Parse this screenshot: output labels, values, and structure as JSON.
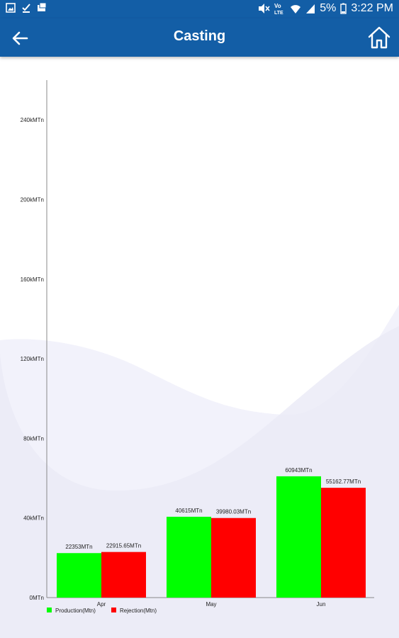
{
  "status_bar": {
    "battery": "5%",
    "time": "3:22 PM",
    "network_label": "Vo)\nLTE"
  },
  "app_bar": {
    "title": "Casting",
    "back_icon": "arrow-left-icon",
    "home_icon": "home-icon"
  },
  "colors": {
    "app_bar": "#135ea6",
    "production": "#00ff00",
    "rejection": "#ff0000"
  },
  "chart_data": {
    "type": "bar",
    "title": "",
    "xlabel": "",
    "ylabel": "",
    "categories": [
      "Apr",
      "May",
      "Jun"
    ],
    "series": [
      {
        "name": "Production(Mtn)",
        "color": "#00ff00",
        "values": [
          22353,
          40615,
          60943
        ],
        "labels": [
          "22353MTn",
          "40615MTn",
          "60943MTn"
        ]
      },
      {
        "name": "Rejection(Mtn)",
        "color": "#ff0000",
        "values": [
          22915.65,
          39980.03,
          55162.77
        ],
        "labels": [
          "22915.65MTn",
          "39980.03MTn",
          "55162.77MTn"
        ]
      }
    ],
    "ylim": [
      0,
      260000
    ],
    "yticks": [
      0,
      40000,
      80000,
      120000,
      160000,
      200000,
      240000
    ],
    "ytick_labels": [
      "0MTn",
      "40kMTn",
      "80kMTn",
      "120kMTn",
      "160kMTn",
      "200kMTn",
      "240kMTn"
    ],
    "grid": false,
    "legend_position": "bottom-left"
  }
}
